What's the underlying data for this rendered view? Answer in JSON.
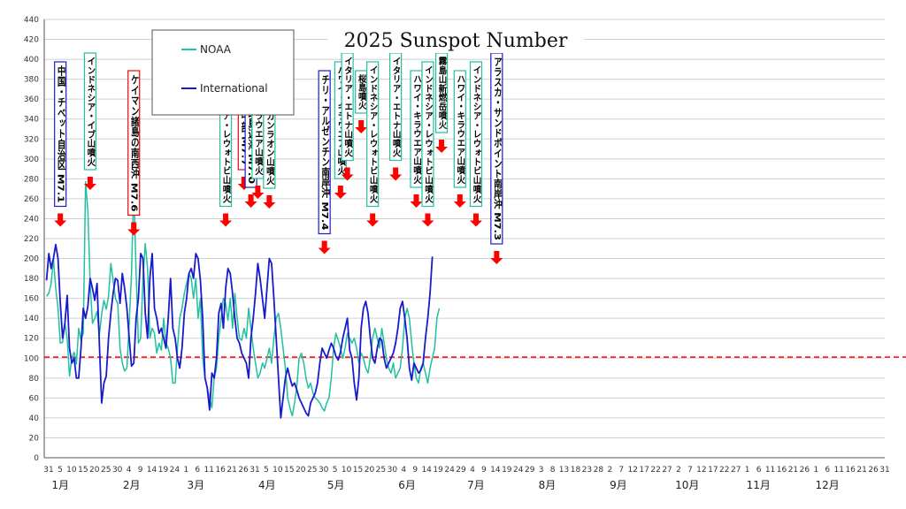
{
  "chart_data": {
    "type": "line",
    "title": "2025 Sunspot Number",
    "ylim": [
      0,
      440
    ],
    "y_ticks": [
      0,
      20,
      40,
      60,
      80,
      100,
      120,
      140,
      160,
      180,
      200,
      220,
      240,
      260,
      280,
      300,
      320,
      340,
      360,
      380,
      400,
      420,
      440
    ],
    "x_day_labels": [
      "31",
      "5",
      "10",
      "15",
      "20",
      "25",
      "30",
      "4",
      "9",
      "14",
      "19",
      "24",
      "1",
      "6",
      "11",
      "16",
      "21",
      "26",
      "31",
      "5",
      "10",
      "15",
      "20",
      "25",
      "30",
      "5",
      "10",
      "15",
      "20",
      "25",
      "30",
      "4",
      "9",
      "14",
      "19",
      "24",
      "29",
      "4",
      "9",
      "14",
      "19",
      "24",
      "29",
      "3",
      "8",
      "13",
      "18",
      "23",
      "28",
      "2",
      "7",
      "12",
      "17",
      "22",
      "27",
      "2",
      "7",
      "12",
      "17",
      "22",
      "27",
      "1",
      "6",
      "11",
      "16",
      "21",
      "26",
      "1",
      "6",
      "11",
      "16",
      "21",
      "26",
      "31"
    ],
    "x_month_labels": [
      "1月",
      "2月",
      "3月",
      "4月",
      "5月",
      "6月",
      "7月",
      "8月",
      "9月",
      "10月",
      "11月",
      "12月"
    ],
    "reference_line": {
      "value": 101,
      "color": "#ff0000",
      "style": "dashed"
    },
    "legend_placement": "top-left",
    "series": [
      {
        "name": "NOAA",
        "color": "#20c0a0",
        "values": [
          162,
          165,
          175,
          200,
          170,
          150,
          115,
          116,
          135,
          120,
          82,
          100,
          106,
          94,
          130,
          118,
          125,
          277,
          248,
          175,
          135,
          140,
          147,
          123,
          144,
          158,
          149,
          162,
          195,
          178,
          160,
          155,
          110,
          95,
          87,
          90,
          135,
          185,
          272,
          185,
          115,
          120,
          180,
          215,
          190,
          120,
          130,
          125,
          105,
          115,
          108,
          140,
          115,
          110,
          100,
          75,
          75,
          110,
          140,
          150,
          165,
          175,
          185,
          180,
          160,
          180,
          140,
          160,
          100,
          80,
          70,
          60,
          50,
          80,
          90,
          120,
          140,
          160,
          155,
          138,
          160,
          130,
          165,
          140,
          120,
          118,
          130,
          120,
          150,
          130,
          110,
          95,
          80,
          85,
          95,
          90,
          100,
          110,
          95,
          120,
          140,
          145,
          130,
          110,
          90,
          60,
          50,
          42,
          55,
          72,
          100,
          105,
          95,
          80,
          70,
          75,
          65,
          60,
          58,
          55,
          50,
          47,
          55,
          60,
          80,
          110,
          125,
          118,
          110,
          100,
          110,
          125,
          120,
          115,
          120,
          110,
          95,
          105,
          100,
          90,
          85,
          100,
          120,
          130,
          120,
          110,
          130,
          115,
          100,
          90,
          85,
          95,
          80,
          85,
          90,
          110,
          140,
          150,
          140,
          115,
          95,
          80,
          75,
          90,
          95,
          85,
          75,
          90,
          100,
          110,
          140,
          150
        ],
        "start_day": 1
      },
      {
        "name": "International",
        "color": "#1a1acc",
        "values": [
          178,
          205,
          190,
          200,
          214,
          200,
          155,
          120,
          135,
          163,
          110,
          95,
          100,
          80,
          80,
          110,
          150,
          140,
          152,
          180,
          170,
          158,
          175,
          115,
          55,
          75,
          82,
          120,
          145,
          165,
          180,
          178,
          155,
          185,
          170,
          150,
          120,
          92,
          95,
          140,
          160,
          205,
          200,
          145,
          120,
          180,
          205,
          150,
          140,
          125,
          130,
          120,
          110,
          140,
          180,
          130,
          120,
          100,
          90,
          110,
          145,
          160,
          185,
          190,
          180,
          205,
          200,
          178,
          140,
          80,
          70,
          48,
          85,
          80,
          100,
          145,
          155,
          130,
          170,
          190,
          185,
          165,
          140,
          120,
          115,
          105,
          100,
          95,
          80,
          120,
          140,
          165,
          195,
          180,
          160,
          140,
          170,
          200,
          195,
          160,
          120,
          80,
          40,
          60,
          80,
          90,
          80,
          72,
          75,
          68,
          60,
          55,
          50,
          45,
          42,
          55,
          60,
          65,
          75,
          95,
          110,
          105,
          100,
          108,
          115,
          110,
          102,
          98,
          106,
          120,
          130,
          140,
          108,
          100,
          75,
          58,
          80,
          130,
          150,
          157,
          145,
          120,
          100,
          95,
          110,
          120,
          118,
          100,
          90,
          95,
          100,
          105,
          115,
          130,
          150,
          157,
          140,
          120,
          90,
          78,
          95,
          90,
          85,
          88,
          95,
          120,
          140,
          165,
          202
        ],
        "start_day": 1
      }
    ],
    "annotations": [
      {
        "text": "中国・チベット自治区 M7.1",
        "day": 7,
        "box_color": "#1a1acc"
      },
      {
        "text": "インドネシア・イブ山噴火",
        "day": 20,
        "box_color": "#20c0a0"
      },
      {
        "text": "ケイマン諸島の南西沖 M7.6",
        "day": 39,
        "box_color": "#ff0000"
      },
      {
        "text": "インドネシア・レウォトビ山噴火",
        "day": 79,
        "box_color": "#20c0a0"
      },
      {
        "text": "ミャンマー中部 M7.7",
        "day": 87,
        "box_color": "#ff0000"
      },
      {
        "text": "トンガ諸島近海 M7.0",
        "day": 90,
        "box_color": "#1a1acc"
      },
      {
        "text": "ハワイ・キラウエア山噴火",
        "day": 93,
        "box_color": "#20c0a0"
      },
      {
        "text": "フィリピン・カンラオン山噴火",
        "day": 98,
        "box_color": "#20c0a0"
      },
      {
        "text": "チリ・アルゼンチン南岸沖 M7.4",
        "day": 122,
        "box_color": "#1a1acc"
      },
      {
        "text": "ハワイ・キラウエア山噴火",
        "day": 129,
        "box_color": "#20c0a0"
      },
      {
        "text": "イタリア・エトナ山噴火",
        "day": 132,
        "box_color": "#20c0a0"
      },
      {
        "text": "桜島噴火",
        "day": 138,
        "box_color": "#20c0a0"
      },
      {
        "text": "インドネシア・レウォトビ山噴火",
        "day": 143,
        "box_color": "#20c0a0"
      },
      {
        "text": "イタリア・エトナ山噴火",
        "day": 153,
        "box_color": "#20c0a0"
      },
      {
        "text": "ハワイ・キラウエア山噴火",
        "day": 162,
        "box_color": "#20c0a0"
      },
      {
        "text": "インドネシア・レウォトビ山噴火",
        "day": 167,
        "box_color": "#20c0a0"
      },
      {
        "text": "霧島山新燃岳噴火",
        "day": 173,
        "box_color": "#20c0a0"
      },
      {
        "text": "ハワイ・キラウエア山噴火",
        "day": 181,
        "box_color": "#20c0a0"
      },
      {
        "text": "インドネシア・レウォトビ山噴火",
        "day": 188,
        "box_color": "#20c0a0"
      },
      {
        "text": "アラスカ・サンドポイント南岸沖 M7.3",
        "day": 197,
        "box_color": "#1a1acc"
      }
    ]
  }
}
